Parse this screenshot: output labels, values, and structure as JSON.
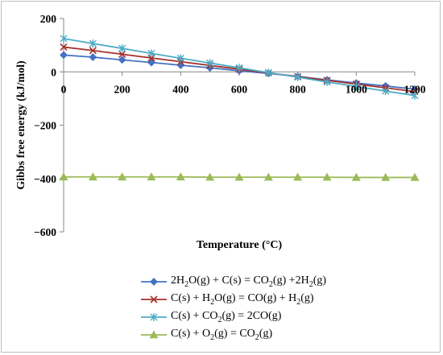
{
  "chart_data": {
    "type": "line",
    "title": "",
    "xlabel": "Temperature (°C)",
    "ylabel": "Gibbs free energy (kJ/mol)",
    "xlim": [
      0,
      1200
    ],
    "ylim": [
      -600,
      200
    ],
    "xticks": [
      0,
      200,
      400,
      600,
      800,
      1000,
      1200
    ],
    "yticks": [
      200,
      0,
      -200,
      -400,
      -600
    ],
    "xtick_labels": [
      "0",
      "200",
      "400",
      "600",
      "800",
      "1000",
      "1200"
    ],
    "ytick_labels": [
      "200",
      "0",
      "−200",
      "−400",
      "−600"
    ],
    "x": [
      0,
      100,
      200,
      300,
      400,
      500,
      600,
      700,
      800,
      900,
      1000,
      1100,
      1200
    ],
    "grid": false,
    "legend_position": "bottom",
    "series": [
      {
        "name": "2H2O(g) + C(s) = CO2(g) +2H2(g)",
        "label_parts": [
          [
            "2H",
            ""
          ],
          [
            "2",
            "sub"
          ],
          [
            "O(g) + C(s) = CO",
            ""
          ],
          [
            "2",
            "sub"
          ],
          [
            "(g) +2H",
            ""
          ],
          [
            "2",
            "sub"
          ],
          [
            "(g)",
            ""
          ]
        ],
        "color": "#4472C4",
        "marker": "diamond",
        "values": [
          63,
          55,
          45,
          35,
          25,
          15,
          4,
          -6,
          -17,
          -30,
          -42,
          -53,
          -65
        ]
      },
      {
        "name": "C(s) + H2O(g) = CO(g) + H2(g)",
        "label_parts": [
          [
            "C(s) + H",
            ""
          ],
          [
            "2",
            "sub"
          ],
          [
            "O(g) = CO(g) + H",
            ""
          ],
          [
            "2",
            "sub"
          ],
          [
            "(g)",
            ""
          ]
        ],
        "color": "#A5322C",
        "marker": "x",
        "values": [
          93,
          80,
          66,
          52,
          38,
          24,
          10,
          -4,
          -18,
          -32,
          -46,
          -60,
          -74
        ]
      },
      {
        "name": "C(s) + CO2(g) = 2CO(g)",
        "label_parts": [
          [
            "C(s) + CO",
            ""
          ],
          [
            "2",
            "sub"
          ],
          [
            "(g) = 2CO(g)",
            ""
          ]
        ],
        "color": "#4BACC6",
        "marker": "asterisk",
        "values": [
          125,
          106,
          88,
          69,
          51,
          33,
          15,
          -3,
          -20,
          -38,
          -55,
          -72,
          -89
        ]
      },
      {
        "name": "C(s) + O2(g) = CO2(g)",
        "label_parts": [
          [
            "C(s) + O",
            ""
          ],
          [
            "2",
            "sub"
          ],
          [
            "(g) = CO",
            ""
          ],
          [
            "2",
            "sub"
          ],
          [
            "(g)",
            ""
          ]
        ],
        "color": "#9BBB59",
        "marker": "triangle",
        "values": [
          -394,
          -394,
          -394,
          -394,
          -394,
          -395,
          -395,
          -395,
          -395,
          -395,
          -396,
          -396,
          -396
        ]
      }
    ]
  }
}
